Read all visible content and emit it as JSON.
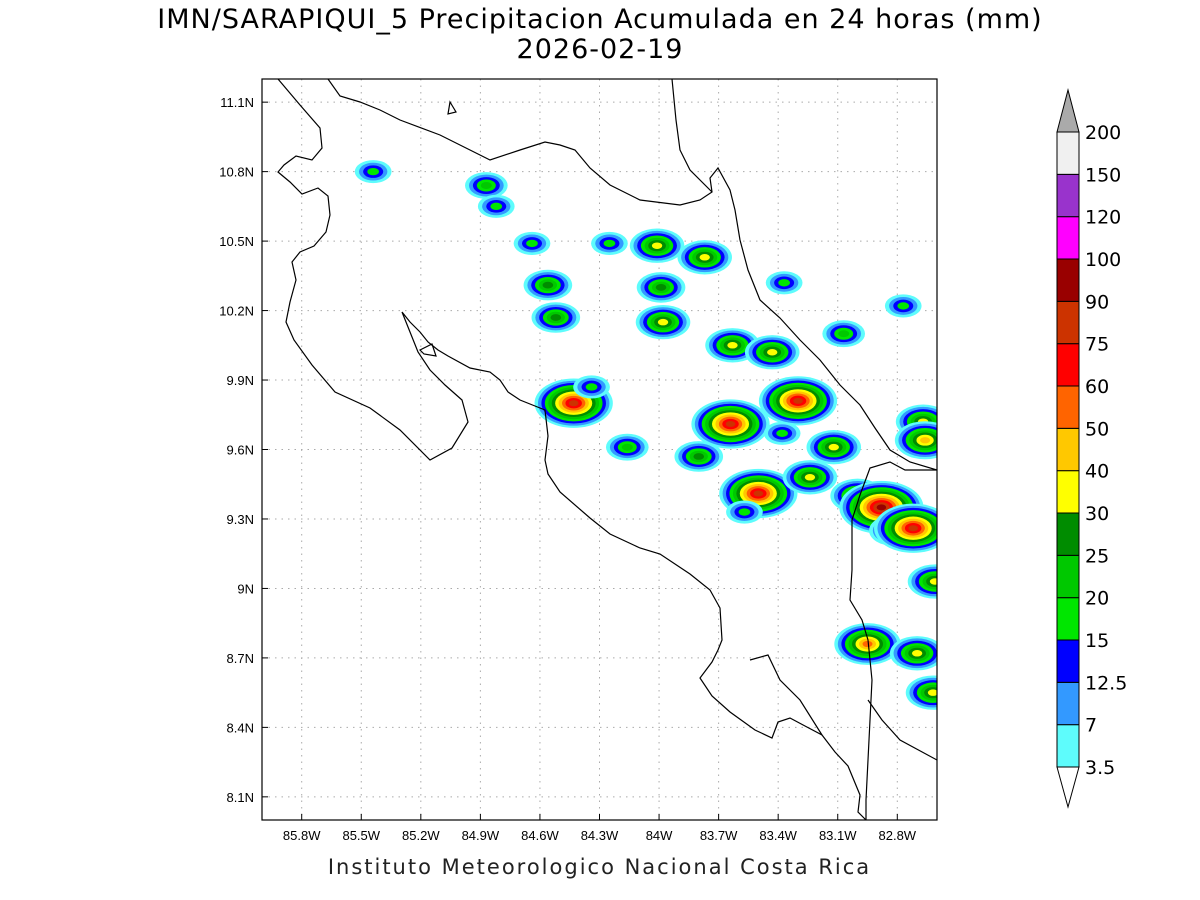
{
  "title_line1": "IMN/SARAPIQUI_5 Precipitacion Acumulada en 24 horas (mm)",
  "title_line2": "2026-02-19",
  "footer": "Instituto Meteorologico Nacional Costa Rica",
  "map": {
    "lon_range": [
      -86.0,
      -82.6
    ],
    "lat_range": [
      8.0,
      11.2
    ],
    "x_ticks": [
      {
        "lon": -85.8,
        "label": "85.8W"
      },
      {
        "lon": -85.5,
        "label": "85.5W"
      },
      {
        "lon": -85.2,
        "label": "85.2W"
      },
      {
        "lon": -84.9,
        "label": "84.9W"
      },
      {
        "lon": -84.6,
        "label": "84.6W"
      },
      {
        "lon": -84.3,
        "label": "84.3W"
      },
      {
        "lon": -84.0,
        "label": "84W"
      },
      {
        "lon": -83.7,
        "label": "83.7W"
      },
      {
        "lon": -83.4,
        "label": "83.4W"
      },
      {
        "lon": -83.1,
        "label": "83.1W"
      },
      {
        "lon": -82.8,
        "label": "82.8W"
      }
    ],
    "y_ticks": [
      {
        "lat": 11.1,
        "label": "11.1N"
      },
      {
        "lat": 10.8,
        "label": "10.8N"
      },
      {
        "lat": 10.5,
        "label": "10.5N"
      },
      {
        "lat": 10.2,
        "label": "10.2N"
      },
      {
        "lat": 9.9,
        "label": "9.9N"
      },
      {
        "lat": 9.6,
        "label": "9.6N"
      },
      {
        "lat": 9.3,
        "label": "9.3N"
      },
      {
        "lat": 9.0,
        "label": "9N"
      },
      {
        "lat": 8.7,
        "label": "8.7N"
      },
      {
        "lat": 8.4,
        "label": "8.4N"
      },
      {
        "lat": 8.1,
        "label": "8.1N"
      }
    ],
    "grid": "dotted",
    "cells": [
      {
        "lon": -85.44,
        "lat": 10.8,
        "level": 3
      },
      {
        "lon": -84.87,
        "lat": 10.74,
        "level": 4
      },
      {
        "lon": -84.82,
        "lat": 10.65,
        "level": 3
      },
      {
        "lon": -84.64,
        "lat": 10.49,
        "level": 3
      },
      {
        "lon": -84.56,
        "lat": 10.31,
        "level": 5
      },
      {
        "lon": -84.52,
        "lat": 10.17,
        "level": 5
      },
      {
        "lon": -84.25,
        "lat": 10.49,
        "level": 3
      },
      {
        "lon": -84.01,
        "lat": 10.48,
        "level": 6
      },
      {
        "lon": -83.77,
        "lat": 10.43,
        "level": 6
      },
      {
        "lon": -83.99,
        "lat": 10.3,
        "level": 5
      },
      {
        "lon": -83.98,
        "lat": 10.15,
        "level": 6
      },
      {
        "lon": -83.63,
        "lat": 10.05,
        "level": 6
      },
      {
        "lon": -83.43,
        "lat": 10.02,
        "level": 6
      },
      {
        "lon": -83.37,
        "lat": 10.32,
        "level": 3
      },
      {
        "lon": -83.07,
        "lat": 10.1,
        "level": 4
      },
      {
        "lon": -82.77,
        "lat": 10.22,
        "level": 3
      },
      {
        "lon": -84.43,
        "lat": 9.8,
        "level": 10
      },
      {
        "lon": -84.34,
        "lat": 9.87,
        "level": 3
      },
      {
        "lon": -83.64,
        "lat": 9.71,
        "level": 10
      },
      {
        "lon": -83.3,
        "lat": 9.81,
        "level": 10
      },
      {
        "lon": -83.38,
        "lat": 9.67,
        "level": 3
      },
      {
        "lon": -83.12,
        "lat": 9.61,
        "level": 6
      },
      {
        "lon": -82.67,
        "lat": 9.72,
        "level": 6
      },
      {
        "lon": -82.66,
        "lat": 9.64,
        "level": 7
      },
      {
        "lon": -83.5,
        "lat": 9.41,
        "level": 10
      },
      {
        "lon": -83.24,
        "lat": 9.48,
        "level": 6
      },
      {
        "lon": -83.0,
        "lat": 9.4,
        "level": 6
      },
      {
        "lon": -82.88,
        "lat": 9.35,
        "level": 11
      },
      {
        "lon": -82.82,
        "lat": 9.25,
        "level": 5
      },
      {
        "lon": -82.72,
        "lat": 9.26,
        "level": 10
      },
      {
        "lon": -82.61,
        "lat": 9.03,
        "level": 6
      },
      {
        "lon": -82.95,
        "lat": 8.76,
        "level": 8
      },
      {
        "lon": -82.7,
        "lat": 8.72,
        "level": 6
      },
      {
        "lon": -82.62,
        "lat": 8.55,
        "level": 6
      },
      {
        "lon": -83.57,
        "lat": 9.33,
        "level": 3
      },
      {
        "lon": -83.8,
        "lat": 9.57,
        "level": 5
      },
      {
        "lon": -84.16,
        "lat": 9.61,
        "level": 4
      }
    ]
  },
  "colorbar": {
    "labels": [
      "3.5",
      "7",
      "12.5",
      "15",
      "20",
      "25",
      "30",
      "40",
      "50",
      "60",
      "75",
      "90",
      "100",
      "120",
      "150",
      "200"
    ],
    "colors": [
      "#5efcfc",
      "#3399ff",
      "#0000ff",
      "#00e600",
      "#00c800",
      "#008c00",
      "#ffff00",
      "#ffc800",
      "#ff6400",
      "#ff0000",
      "#cc3300",
      "#990000",
      "#ff00ff",
      "#9933cc",
      "#f0f0f0",
      "#aaaaaa"
    ]
  }
}
